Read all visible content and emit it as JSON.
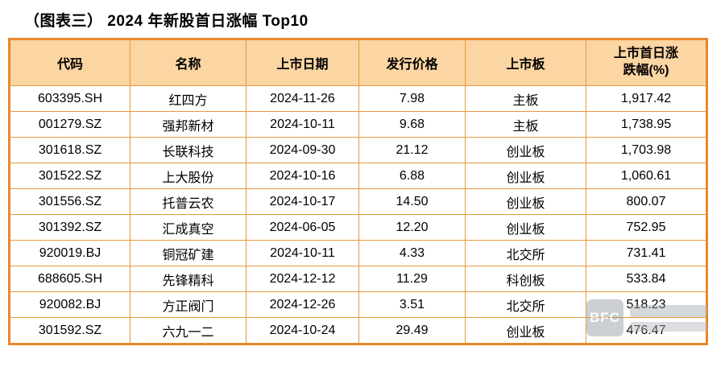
{
  "title": "（图表三） 2024 年新股首日涨幅 Top10",
  "table": {
    "columns": [
      {
        "key": "code",
        "label": "代码"
      },
      {
        "key": "name",
        "label": "名称"
      },
      {
        "key": "list_date",
        "label": "上市日期"
      },
      {
        "key": "issue_price",
        "label": "发行价格"
      },
      {
        "key": "board",
        "label": "上市板"
      },
      {
        "key": "first_day_change",
        "label": "上市首日涨\n跌幅(%)"
      }
    ],
    "rows": [
      [
        "603395.SH",
        "红四方",
        "2024-11-26",
        "7.98",
        "主板",
        "1,917.42"
      ],
      [
        "001279.SZ",
        "强邦新材",
        "2024-10-11",
        "9.68",
        "主板",
        "1,738.95"
      ],
      [
        "301618.SZ",
        "长联科技",
        "2024-09-30",
        "21.12",
        "创业板",
        "1,703.98"
      ],
      [
        "301522.SZ",
        "上大股份",
        "2024-10-16",
        "6.88",
        "创业板",
        "1,060.61"
      ],
      [
        "301556.SZ",
        "托普云农",
        "2024-10-17",
        "14.50",
        "创业板",
        "800.07"
      ],
      [
        "301392.SZ",
        "汇成真空",
        "2024-06-05",
        "12.20",
        "创业板",
        "752.95"
      ],
      [
        "920019.BJ",
        "铜冠矿建",
        "2024-10-11",
        "4.33",
        "北交所",
        "731.41"
      ],
      [
        "688605.SH",
        "先锋精科",
        "2024-12-12",
        "11.29",
        "科创板",
        "533.84"
      ],
      [
        "920082.BJ",
        "方正阀门",
        "2024-12-26",
        "3.51",
        "北交所",
        "518.23"
      ],
      [
        "301592.SZ",
        "六九一二",
        "2024-10-24",
        "29.49",
        "创业板",
        "476.47"
      ]
    ]
  },
  "watermark": {
    "logo_text": "BFC"
  },
  "colors": {
    "header_bg": "#fbd5a2",
    "inner_border": "#e89a3e",
    "outer_border": "#e8882a"
  },
  "chart_data": {
    "type": "table",
    "title": "（图表三） 2024 年新股首日涨幅 Top10",
    "columns": [
      "代码",
      "名称",
      "上市日期",
      "发行价格",
      "上市板",
      "上市首日涨跌幅(%)"
    ],
    "rows": [
      [
        "603395.SH",
        "红四方",
        "2024-11-26",
        7.98,
        "主板",
        1917.42
      ],
      [
        "001279.SZ",
        "强邦新材",
        "2024-10-11",
        9.68,
        "主板",
        1738.95
      ],
      [
        "301618.SZ",
        "长联科技",
        "2024-09-30",
        21.12,
        "创业板",
        1703.98
      ],
      [
        "301522.SZ",
        "上大股份",
        "2024-10-16",
        6.88,
        "创业板",
        1060.61
      ],
      [
        "301556.SZ",
        "托普云农",
        "2024-10-17",
        14.5,
        "创业板",
        800.07
      ],
      [
        "301392.SZ",
        "汇成真空",
        "2024-06-05",
        12.2,
        "创业板",
        752.95
      ],
      [
        "920019.BJ",
        "铜冠矿建",
        "2024-10-11",
        4.33,
        "北交所",
        731.41
      ],
      [
        "688605.SH",
        "先锋精科",
        "2024-12-12",
        11.29,
        "科创板",
        533.84
      ],
      [
        "920082.BJ",
        "方正阀门",
        "2024-12-26",
        3.51,
        "北交所",
        518.23
      ],
      [
        "301592.SZ",
        "六九一二",
        "2024-10-24",
        29.49,
        "创业板",
        476.47
      ]
    ]
  }
}
